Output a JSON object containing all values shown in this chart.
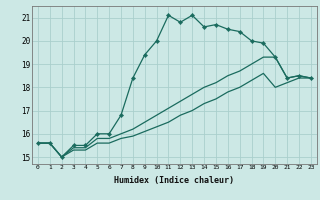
{
  "xlabel": "Humidex (Indice chaleur)",
  "background_color": "#cce8e5",
  "grid_color": "#aacfcc",
  "line_color": "#1a6b5e",
  "xlim": [
    -0.5,
    23.5
  ],
  "ylim": [
    14.7,
    21.5
  ],
  "xticks": [
    0,
    1,
    2,
    3,
    4,
    5,
    6,
    7,
    8,
    9,
    10,
    11,
    12,
    13,
    14,
    15,
    16,
    17,
    18,
    19,
    20,
    21,
    22,
    23
  ],
  "yticks": [
    15,
    16,
    17,
    18,
    19,
    20,
    21
  ],
  "series1_x": [
    0,
    1,
    2,
    3,
    4,
    5,
    6,
    7,
    8,
    9,
    10,
    11,
    12,
    13,
    14,
    15,
    16,
    17,
    18,
    19,
    20,
    21,
    22,
    23
  ],
  "series1_y": [
    15.6,
    15.6,
    15.0,
    15.5,
    15.5,
    16.0,
    16.0,
    16.8,
    18.4,
    19.4,
    20.0,
    21.1,
    20.8,
    21.1,
    20.6,
    20.7,
    20.5,
    20.4,
    20.0,
    19.9,
    19.3,
    18.4,
    18.5,
    18.4
  ],
  "series2_x": [
    0,
    1,
    2,
    3,
    4,
    5,
    6,
    7,
    8,
    9,
    10,
    11,
    12,
    13,
    14,
    15,
    16,
    17,
    18,
    19,
    20,
    21,
    22,
    23
  ],
  "series2_y": [
    15.6,
    15.6,
    15.0,
    15.4,
    15.4,
    15.8,
    15.8,
    16.0,
    16.2,
    16.5,
    16.8,
    17.1,
    17.4,
    17.7,
    18.0,
    18.2,
    18.5,
    18.7,
    19.0,
    19.3,
    19.3,
    18.4,
    18.5,
    18.4
  ],
  "series3_x": [
    0,
    1,
    2,
    3,
    4,
    5,
    6,
    7,
    8,
    9,
    10,
    11,
    12,
    13,
    14,
    15,
    16,
    17,
    18,
    19,
    20,
    21,
    22,
    23
  ],
  "series3_y": [
    15.6,
    15.6,
    15.0,
    15.3,
    15.3,
    15.6,
    15.6,
    15.8,
    15.9,
    16.1,
    16.3,
    16.5,
    16.8,
    17.0,
    17.3,
    17.5,
    17.8,
    18.0,
    18.3,
    18.6,
    18.0,
    18.2,
    18.4,
    18.4
  ]
}
